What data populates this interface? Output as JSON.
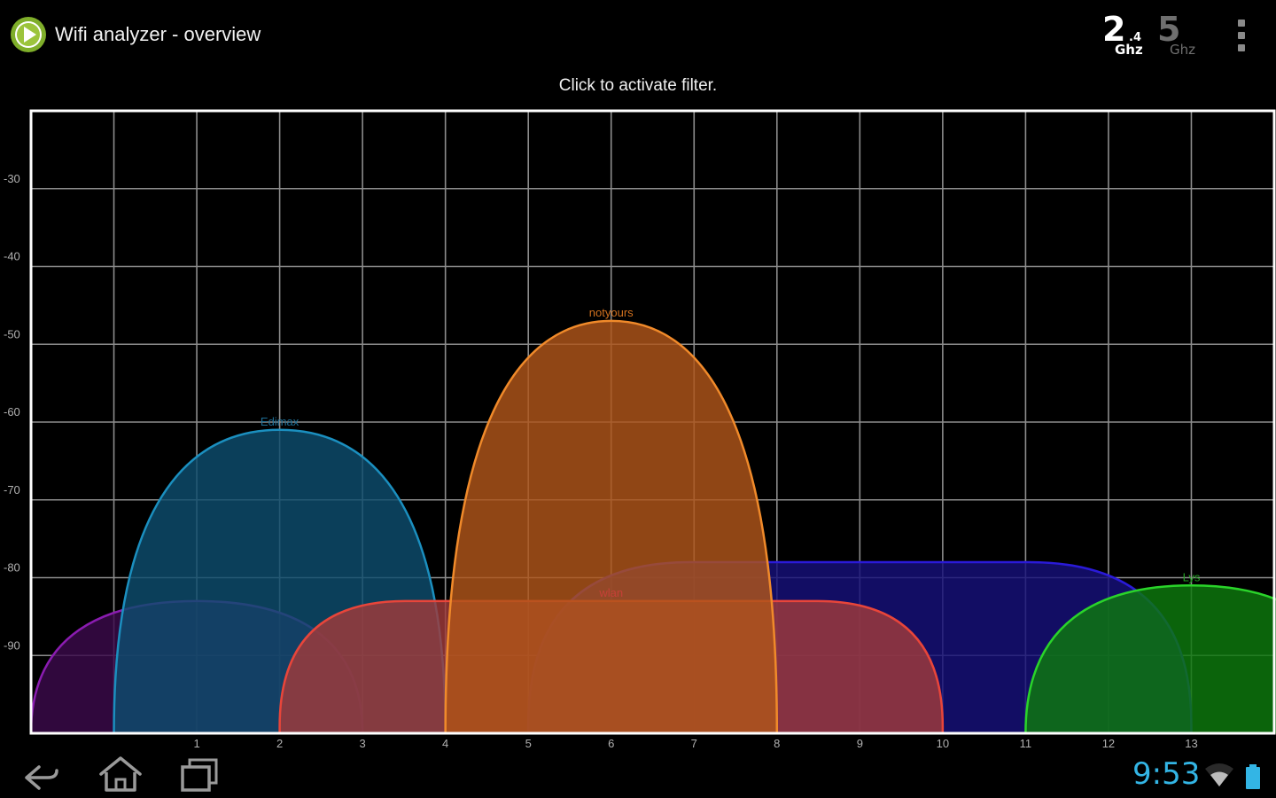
{
  "app": {
    "title": "Wifi analyzer - overview",
    "icon": "play-circle-icon"
  },
  "band_selector": {
    "band_24": {
      "big": "2",
      "small": ".4",
      "unit": "Ghz",
      "selected": true
    },
    "band_5": {
      "big": "5",
      "unit": "Ghz",
      "selected": false
    }
  },
  "menu": {
    "icon": "overflow-menu-icon"
  },
  "filter_hint": "Click to activate filter.",
  "colors": {
    "background": "#000000",
    "grid": "#8c8c8c",
    "frame": "#ffffff",
    "clock": "#33b5e5"
  },
  "chart_data": {
    "type": "area",
    "x_ticks": [
      "1",
      "2",
      "3",
      "4",
      "5",
      "6",
      "7",
      "8",
      "9",
      "10",
      "11",
      "12",
      "13"
    ],
    "y_ticks": [
      "-30",
      "-40",
      "-50",
      "-60",
      "-70",
      "-80",
      "-90"
    ],
    "xlim": [
      -1,
      14
    ],
    "ylim": [
      -100,
      -20
    ],
    "grid": true,
    "series": [
      {
        "name": "",
        "channel": 1,
        "signal_dbm": -83,
        "width_channels": 4,
        "stroke": "#8a1cb0",
        "fill": "#3a0a4a",
        "label_color": "#6a3a9a"
      },
      {
        "name": "Edimax",
        "channel": 2,
        "signal_dbm": -61,
        "width_channels": 4,
        "stroke": "#1b8fbf",
        "fill": "#0e4d6e",
        "label_color": "#1e6f96"
      },
      {
        "name": "",
        "channel": 9,
        "signal_dbm": -78,
        "width_channels": 8,
        "stroke": "#2a1ad8",
        "fill": "#16107a",
        "label_color": "#3a2ab0"
      },
      {
        "name": "wlan",
        "channel": 6,
        "signal_dbm": -83,
        "width_channels": 8,
        "stroke": "#e8453a",
        "fill": "#a03a3a",
        "label_color": "#c64038"
      },
      {
        "name": "notyours",
        "channel": 6,
        "signal_dbm": -47,
        "width_channels": 4,
        "stroke": "#f08a2a",
        "fill": "#b0551a",
        "label_color": "#d0701e"
      },
      {
        "name": "Lys",
        "channel": 13,
        "signal_dbm": -81,
        "width_channels": 4,
        "stroke": "#2ad42a",
        "fill": "#0e7a0e",
        "label_color": "#22a022"
      }
    ]
  },
  "nav": {
    "back_icon": "back-arrow-icon",
    "home_icon": "home-icon",
    "recents_icon": "recent-apps-icon"
  },
  "status": {
    "time": "9:53",
    "wifi_icon": "wifi-signal-icon",
    "battery_icon": "battery-icon"
  }
}
